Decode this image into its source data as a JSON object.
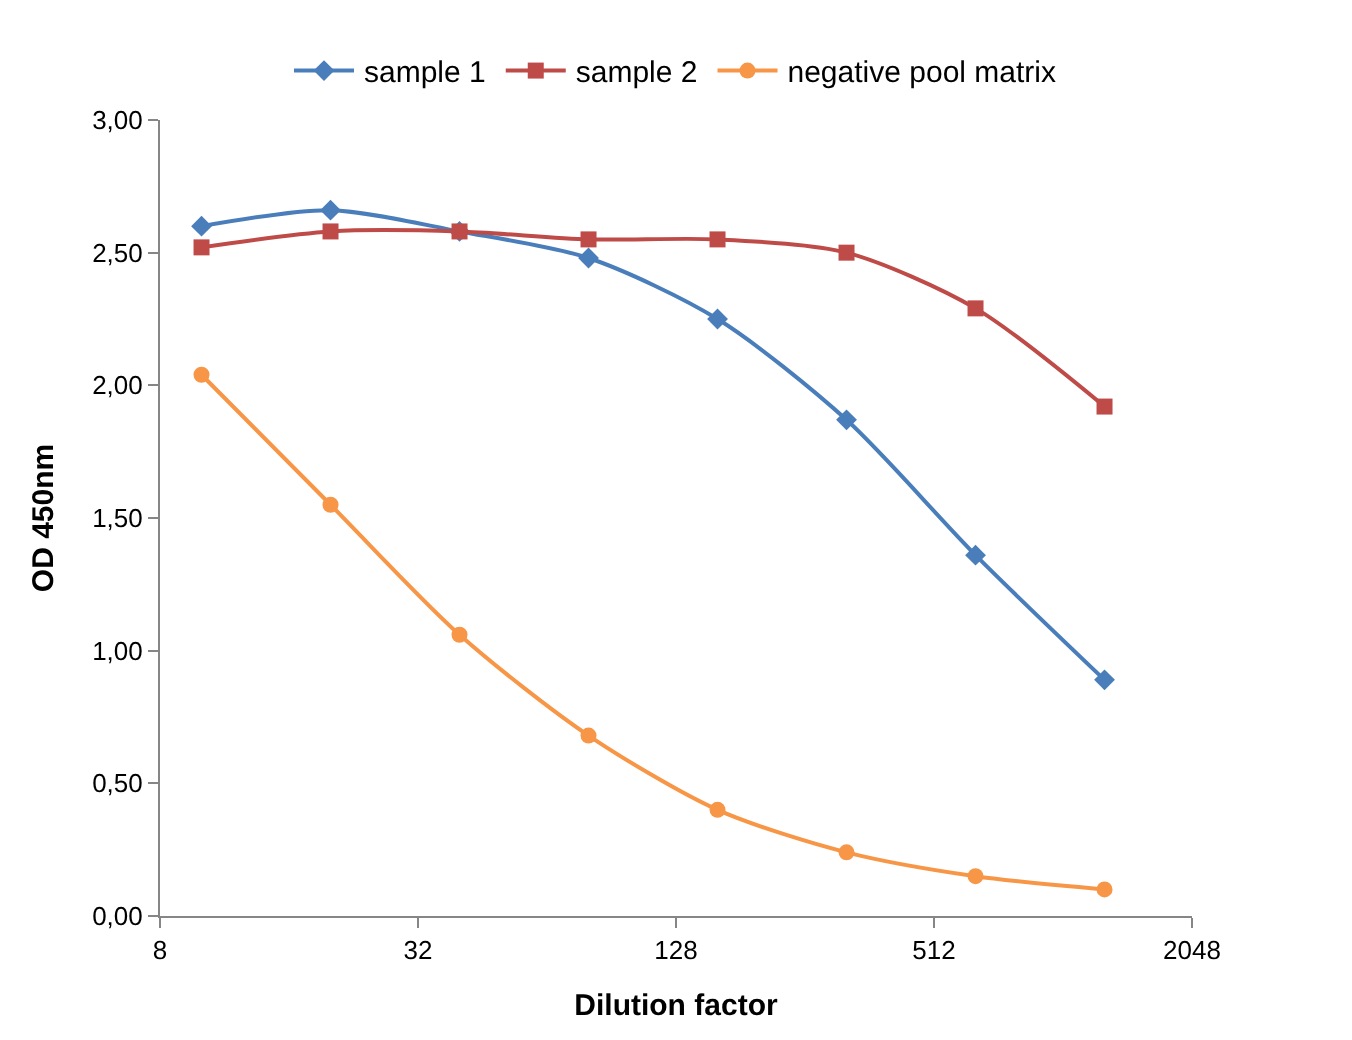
{
  "chart_data": {
    "type": "line",
    "xlabel": "Dilution factor",
    "ylabel": "OD 450nm",
    "x": [
      10,
      20,
      40,
      80,
      160,
      320,
      640,
      1280
    ],
    "series": [
      {
        "name": "sample 1",
        "color": "#4a7ebb",
        "marker": "diamond",
        "values": [
          2.6,
          2.66,
          2.58,
          2.48,
          2.25,
          1.87,
          1.36,
          0.89
        ]
      },
      {
        "name": "sample 2",
        "color": "#be4b48",
        "marker": "square",
        "values": [
          2.52,
          2.58,
          2.58,
          2.55,
          2.55,
          2.5,
          2.29,
          1.92
        ]
      },
      {
        "name": "negative pool matrix",
        "color": "#f79646",
        "marker": "circle",
        "values": [
          2.04,
          1.55,
          1.06,
          0.68,
          0.4,
          0.24,
          0.15,
          0.1
        ]
      }
    ],
    "log": "x",
    "xlim": [
      8,
      2048
    ],
    "xticks": [
      8,
      32,
      128,
      512,
      2048
    ],
    "ylim": [
      0,
      3
    ],
    "yticks": [
      {
        "value": 0,
        "label": "0,00"
      },
      {
        "value": 0.5,
        "label": "0,50"
      },
      {
        "value": 1,
        "label": "1,00"
      },
      {
        "value": 1.5,
        "label": "1,50"
      },
      {
        "value": 2,
        "label": "2,00"
      },
      {
        "value": 2.5,
        "label": "2,50"
      },
      {
        "value": 3,
        "label": "3,00"
      }
    ],
    "legend": "top",
    "line_style": "solid"
  }
}
